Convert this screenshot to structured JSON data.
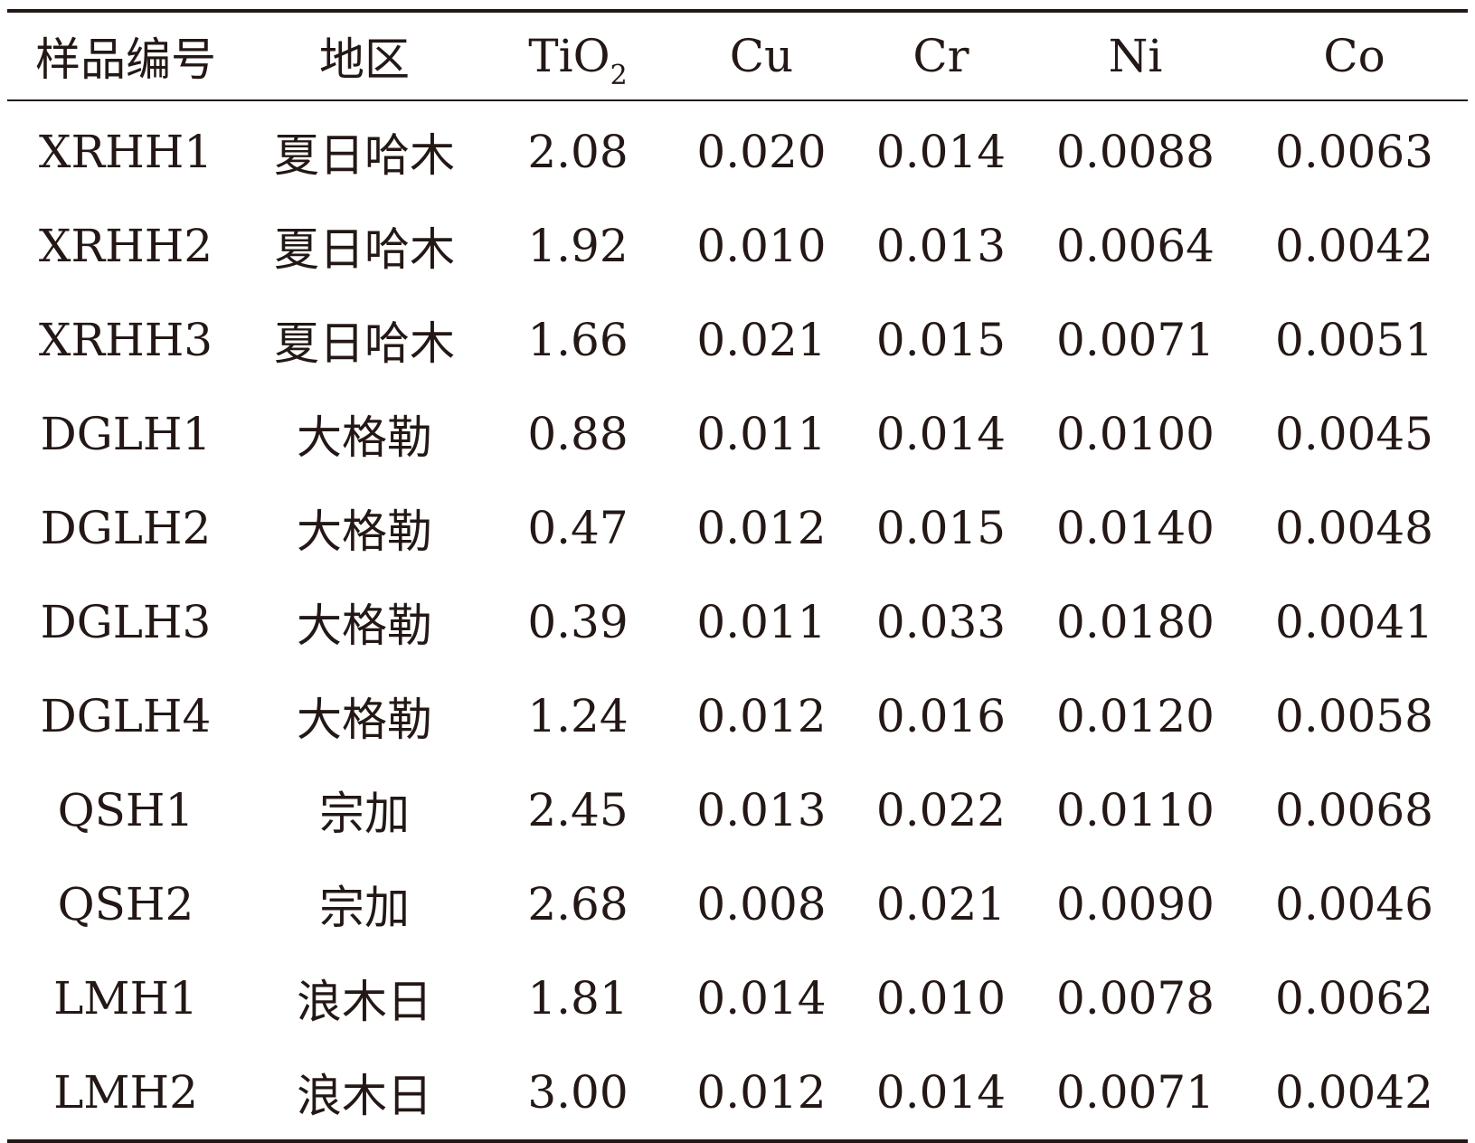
{
  "table": {
    "headers": [
      {
        "text": "样品编号",
        "sub": ""
      },
      {
        "text": "地区",
        "sub": ""
      },
      {
        "text": "TiO",
        "sub": "2"
      },
      {
        "text": "Cu",
        "sub": ""
      },
      {
        "text": "Cr",
        "sub": ""
      },
      {
        "text": "Ni",
        "sub": ""
      },
      {
        "text": "Co",
        "sub": ""
      }
    ],
    "rows": [
      [
        "XRHH1",
        "夏日哈木",
        "2.08",
        "0.020",
        "0.014",
        "0.0088",
        "0.0063"
      ],
      [
        "XRHH2",
        "夏日哈木",
        "1.92",
        "0.010",
        "0.013",
        "0.0064",
        "0.0042"
      ],
      [
        "XRHH3",
        "夏日哈木",
        "1.66",
        "0.021",
        "0.015",
        "0.0071",
        "0.0051"
      ],
      [
        "DGLH1",
        "大格勒",
        "0.88",
        "0.011",
        "0.014",
        "0.0100",
        "0.0045"
      ],
      [
        "DGLH2",
        "大格勒",
        "0.47",
        "0.012",
        "0.015",
        "0.0140",
        "0.0048"
      ],
      [
        "DGLH3",
        "大格勒",
        "0.39",
        "0.011",
        "0.033",
        "0.0180",
        "0.0041"
      ],
      [
        "DGLH4",
        "大格勒",
        "1.24",
        "0.012",
        "0.016",
        "0.0120",
        "0.0058"
      ],
      [
        "QSH1",
        "宗加",
        "2.45",
        "0.013",
        "0.022",
        "0.0110",
        "0.0068"
      ],
      [
        "QSH2",
        "宗加",
        "2.68",
        "0.008",
        "0.021",
        "0.0090",
        "0.0046"
      ],
      [
        "LMH1",
        "浪木日",
        "1.81",
        "0.014",
        "0.010",
        "0.0078",
        "0.0062"
      ],
      [
        "LMH2",
        "浪木日",
        "3.00",
        "0.012",
        "0.014",
        "0.0071",
        "0.0042"
      ]
    ]
  }
}
